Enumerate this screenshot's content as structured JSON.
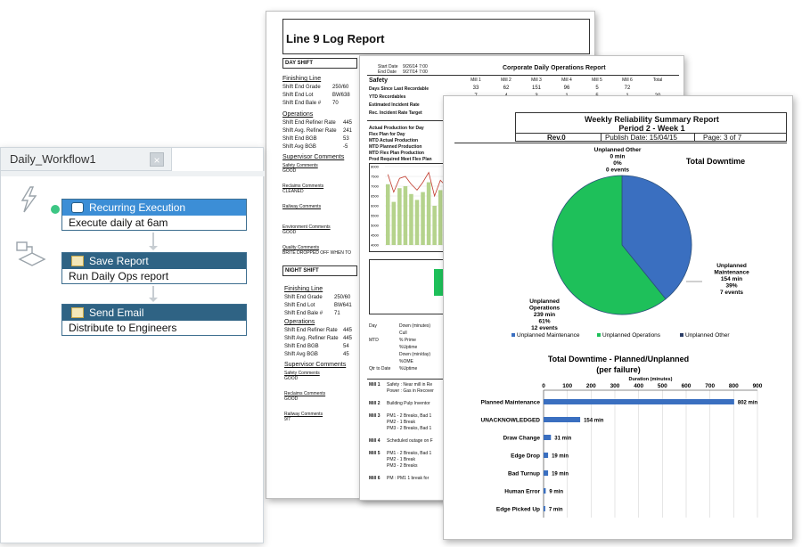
{
  "workflow": {
    "tab_title": "Daily_Workflow1",
    "close_glyph": "×",
    "steps": [
      {
        "title": "Recurring Execution",
        "detail": "Execute daily at 6am",
        "icon": "clock-icon",
        "color": "#3c8ed6"
      },
      {
        "title": "Save Report",
        "detail": "Run Daily Ops report",
        "icon": "document-icon",
        "color": "#2f6384"
      },
      {
        "title": "Send Email",
        "detail": "Distribute to Engineers",
        "icon": "envelope-icon",
        "color": "#2f6384"
      }
    ]
  },
  "line9": {
    "title": "Line 9 Log Report",
    "day_shift": "DAY SHIFT",
    "night_shift": "NIGHT SHIFT",
    "finishing_line": "Finishing Line",
    "operations": "Operations",
    "supervisor_comments": "Supervisor Comments",
    "day_rows": [
      {
        "label": "Shift End Grade",
        "value": "250/60"
      },
      {
        "label": "Shift End Lot",
        "value": "BW638"
      },
      {
        "label": "Shift End Bale #",
        "value": "70"
      }
    ],
    "day_ops": [
      {
        "label": "Shift End Refiner Rate",
        "value": "445"
      },
      {
        "label": "Shift Avg. Refiner Rate",
        "value": "241"
      },
      {
        "label": "Shift End BGB",
        "value": "53"
      },
      {
        "label": "Shift Avg BGB",
        "value": "-5"
      }
    ],
    "day_comments": [
      {
        "label": "Safety Comments",
        "value": "GOOD"
      },
      {
        "label": "Reclaims Comments",
        "value": "CLEANED"
      },
      {
        "label": "Railway Comments",
        "value": ""
      },
      {
        "label": "Environment Comments",
        "value": "GOOD"
      },
      {
        "label": "Quality Comments",
        "value": "BRITE DROPPED OFF WHEN TO"
      }
    ],
    "night_rows": [
      {
        "label": "Shift End Grade",
        "value": "250/60"
      },
      {
        "label": "Shift End Lot",
        "value": "BW641"
      },
      {
        "label": "Shift End Bale #",
        "value": "71"
      }
    ],
    "night_ops": [
      {
        "label": "Shift End Refiner Rate",
        "value": "445"
      },
      {
        "label": "Shift Avg. Refiner Rate",
        "value": "445"
      },
      {
        "label": "Shift End BGB",
        "value": "54"
      },
      {
        "label": "Shift Avg BGB",
        "value": "45"
      }
    ],
    "night_comments": [
      {
        "label": "Safety Comments",
        "value": "GOOD"
      },
      {
        "label": "Reclaims Comments",
        "value": "GOOD"
      },
      {
        "label": "Railway Comments",
        "value": "9/7"
      }
    ]
  },
  "corporate": {
    "title": "Corporate Daily Operations Report",
    "start_date_label": "Start Date",
    "start_date": "9/26/14 7:00",
    "end_date_label": "End Date",
    "end_date": "9/27/14 7:00",
    "columns": [
      "Mill 1",
      "Mill 2",
      "Mill 3",
      "Mill 4",
      "Mill 5",
      "Mill 6",
      "Total"
    ],
    "safety_label": "Safety",
    "rows": [
      {
        "label": "Days Since Last Recordable",
        "values": [
          "33",
          "62",
          "151",
          "96",
          "5",
          "72",
          ""
        ]
      },
      {
        "label": "YTD Recordables",
        "values": [
          "7",
          "4",
          "3",
          "1",
          "5",
          "1",
          "20"
        ]
      },
      {
        "label": "Estimated Incident Rate",
        "values": [
          "",
          "",
          "",
          "",
          "",
          "",
          ""
        ]
      },
      {
        "label": "Rec. Incident Rate Target",
        "values": [
          "",
          "",
          "",
          "",
          "",
          "",
          ""
        ]
      }
    ],
    "production_rows": [
      "Actual Production for Day",
      "Flex Plan for Day",
      "MTD Actual Production",
      "MTD Planned Production",
      "MTD Flex Plan Production",
      "Prod Required Meet Flex Plan"
    ],
    "mini_chart_y": [
      "8000",
      "7500",
      "7000",
      "6500",
      "6000",
      "5500",
      "5000",
      "4500",
      "4000"
    ],
    "mini_chart_bars": [
      7100,
      6200,
      6900,
      7000,
      6600,
      6300,
      6700,
      7200,
      6000,
      6800,
      6500
    ],
    "day_block": [
      {
        "label": "Day",
        "text": "Down (minutes)"
      },
      {
        "label": "",
        "text": "Cull"
      },
      {
        "label": "MTD",
        "text": "% Prime"
      },
      {
        "label": "",
        "text": "%Uptime"
      },
      {
        "label": "",
        "text": "Down (min/day)"
      },
      {
        "label": "",
        "text": "%OME"
      },
      {
        "label": "Qtr to Date",
        "text": "%Uptime"
      }
    ],
    "mill_notes": [
      {
        "mill": "Mill 1",
        "lines": [
          "Safety : Near mill in Re",
          "Power : Gas in Recover"
        ]
      },
      {
        "mill": "Mill 2",
        "lines": [
          "Building Pulp Inventor"
        ]
      },
      {
        "mill": "Mill 3",
        "lines": [
          "PM1 - 2 Breaks, Bad 1",
          "PM2 - 1 Break",
          "PM3 - 2 Breaks, Bad 1"
        ]
      },
      {
        "mill": "Mill 4",
        "lines": [
          "Scheduled outage on F"
        ]
      },
      {
        "mill": "Mill 5",
        "lines": [
          "PM1 - 2 Breaks, Bad 1",
          "PM2 - 1 Break",
          "PM3 - 2 Breaks"
        ]
      },
      {
        "mill": "Mill 6",
        "lines": [
          "PM : PM1 1 break for"
        ]
      }
    ]
  },
  "weekly": {
    "title": "Weekly Reliability Summary Report",
    "period": "Period 2 - Week 1",
    "rev": "Rev.0",
    "publish": "Publish Date: 15/04/15",
    "page": "Page: 3 of 7"
  },
  "chart_data": [
    {
      "type": "pie",
      "title": "Total Downtime",
      "categories": [
        "Unplanned Maintenance",
        "Unplanned Operations",
        "Unplanned Other"
      ],
      "values": [
        154,
        239,
        0
      ],
      "percents": [
        "39%",
        "61%",
        "0%"
      ],
      "events": [
        "7 events",
        "12 events",
        "0 events"
      ],
      "minutes_labels": [
        "154 min",
        "239 min",
        "0 min"
      ],
      "label_names": [
        [
          "Unplanned",
          "Maintenance"
        ],
        [
          "Unplanned",
          "Operations"
        ],
        [
          "Unplanned Other"
        ]
      ],
      "colors": [
        "#3a6fc0",
        "#1ec05a",
        "#2a3d66"
      ],
      "legend_position": "bottom"
    },
    {
      "type": "bar",
      "orientation": "horizontal",
      "title": "Total Downtime - Planned/Unplanned",
      "subtitle": "(per failure)",
      "xlabel": "Duration (minutes)",
      "xlim": [
        0,
        900
      ],
      "xticks": [
        0,
        100,
        200,
        300,
        400,
        500,
        600,
        700,
        800,
        900
      ],
      "categories": [
        "Planned Maintenance",
        "UNACKNOWLEDGED",
        "Draw Change",
        "Edge Drop",
        "Bad Turnup",
        "Human Error",
        "Edge Picked Up"
      ],
      "values": [
        802,
        154,
        31,
        19,
        19,
        9,
        7
      ],
      "value_labels": [
        "802 min",
        "154 min",
        "31 min",
        "19 min",
        "19 min",
        "9 min",
        "7 min"
      ],
      "color": "#3a6fc0",
      "grid": true
    }
  ]
}
